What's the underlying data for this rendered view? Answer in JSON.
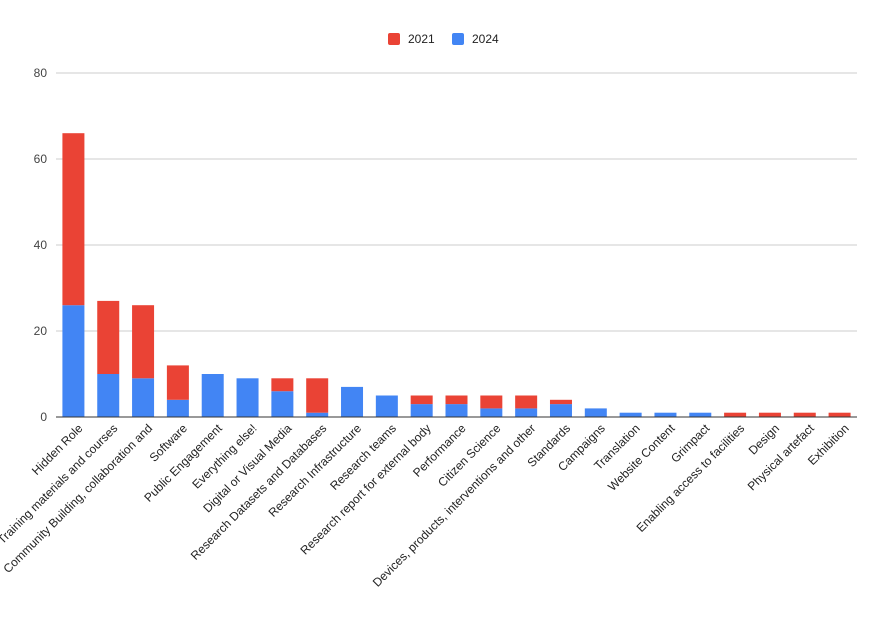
{
  "chart_data": {
    "type": "bar",
    "stacked": true,
    "title": "",
    "xlabel": "",
    "ylabel": "",
    "ylim": [
      0,
      80
    ],
    "yticks": [
      0,
      20,
      40,
      60,
      80
    ],
    "grid": true,
    "legend_position": "top-center",
    "categories": [
      "Hidden Role",
      "Training materials and courses",
      "Community Building, collaboration and",
      "Software",
      "Public Engagement",
      "Everything else!",
      "Digital or Visual Media",
      "Research Datasets and Databases",
      "Research Infrastructure",
      "Research teams",
      "Research report for external body",
      "Performance",
      "Citizen Science",
      "Devices, products, interventions and other",
      "Standards",
      "Campaigns",
      "Translation",
      "Website Content",
      "Grimpact",
      "Enabling access to facilities",
      "Design",
      "Physical artefact",
      "Exhibition"
    ],
    "series": [
      {
        "name": "2024",
        "color": "#4285f4",
        "values": [
          26,
          10,
          9,
          4,
          10,
          9,
          6,
          1,
          7,
          5,
          3,
          3,
          2,
          2,
          3,
          2,
          1,
          1,
          1,
          0,
          0,
          0,
          0
        ]
      },
      {
        "name": "2021",
        "color": "#ea4335",
        "values": [
          40,
          17,
          17,
          8,
          0,
          0,
          3,
          8,
          0,
          0,
          2,
          2,
          3,
          3,
          1,
          0,
          0,
          0,
          0,
          1,
          1,
          1,
          1
        ]
      }
    ],
    "legend": [
      {
        "name": "2021",
        "color": "#ea4335"
      },
      {
        "name": "2024",
        "color": "#4285f4"
      }
    ]
  }
}
